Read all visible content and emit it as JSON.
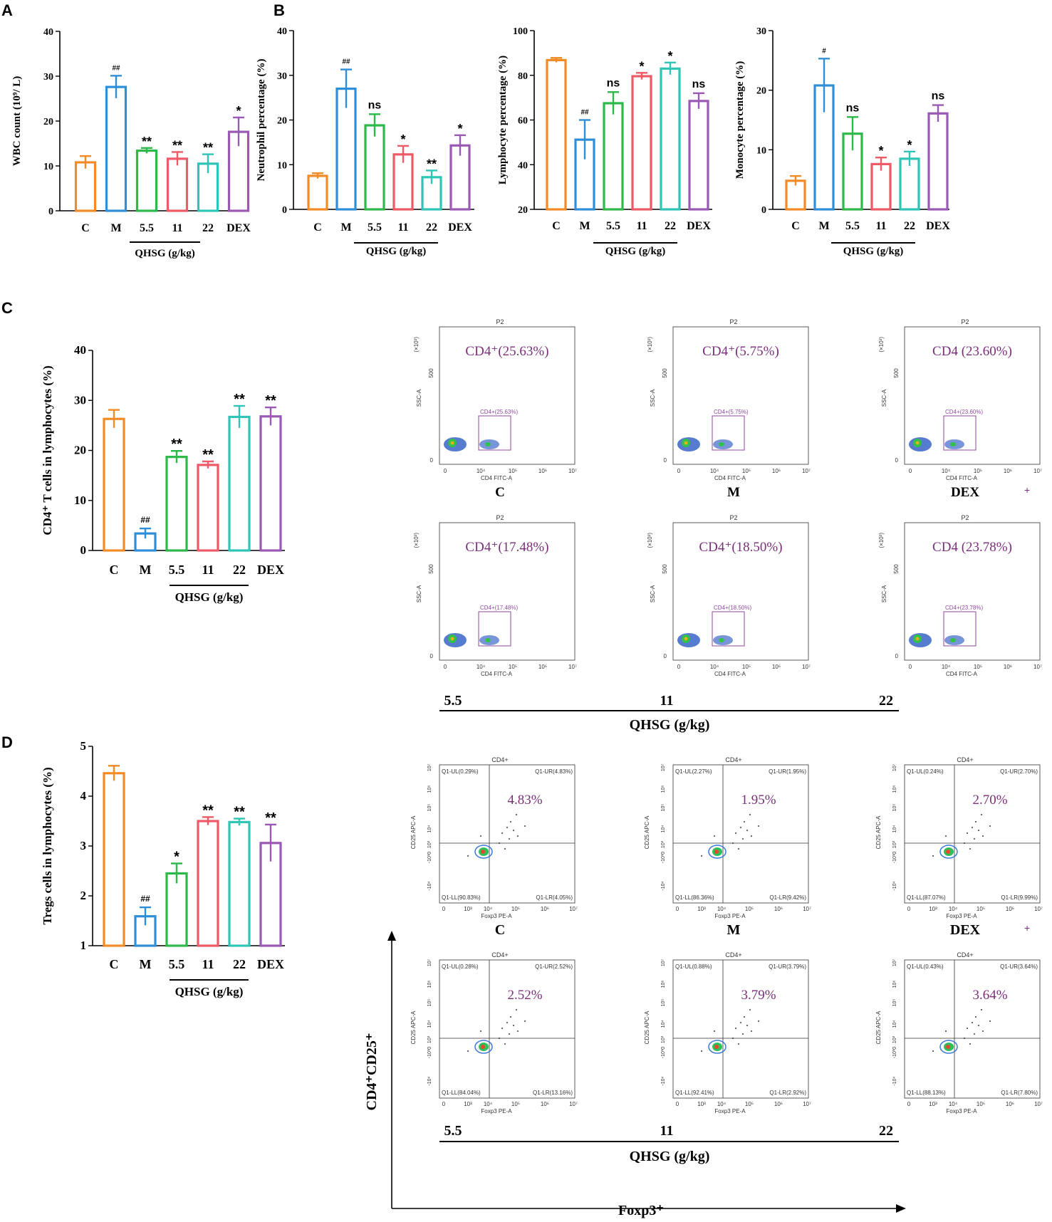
{
  "colors": {
    "C": "#F28A26",
    "M": "#2E8FD8",
    "5.5": "#2DB84A",
    "11": "#EE5A66",
    "22": "#2EC4B6",
    "DEX": "#9B59B6",
    "flow_text": "#7A2F7A",
    "gate": "#8E4A9E"
  },
  "panel_letters": [
    "A",
    "B",
    "C",
    "D"
  ],
  "categories": [
    "C",
    "M",
    "5.5",
    "11",
    "22",
    "DEX"
  ],
  "group_label": "QHSG (g/kg)",
  "chart_data": [
    {
      "id": "A",
      "type": "bar",
      "ylabel": "WBC count (10⁹/ L)",
      "ylim": [
        0,
        40
      ],
      "yticks": [
        0,
        10,
        20,
        30,
        40
      ],
      "categories": [
        "C",
        "M",
        "5.5",
        "11",
        "22",
        "DEX"
      ],
      "values": [
        10.8,
        27.6,
        13.4,
        11.6,
        10.5,
        17.6
      ],
      "errors": [
        1.4,
        2.5,
        0.6,
        1.5,
        2.1,
        3.2
      ],
      "annotations": [
        "",
        "##",
        "**",
        "**",
        "**",
        "*"
      ]
    },
    {
      "id": "B1",
      "type": "bar",
      "ylabel": "Neutrophil percentage (%)",
      "ylim": [
        0,
        40
      ],
      "yticks": [
        0,
        10,
        20,
        30,
        40
      ],
      "categories": [
        "C",
        "M",
        "5.5",
        "11",
        "22",
        "DEX"
      ],
      "values": [
        7.5,
        27.0,
        18.8,
        12.3,
        7.2,
        14.3
      ],
      "errors": [
        0.6,
        4.3,
        2.5,
        1.9,
        1.5,
        2.3
      ],
      "annotations": [
        "",
        "##",
        "ns",
        "*",
        "**",
        "*"
      ]
    },
    {
      "id": "B2",
      "type": "bar",
      "ylabel": "Lymphocyte percentage (%)",
      "ylim": [
        20,
        100
      ],
      "yticks": [
        20,
        40,
        60,
        80,
        100
      ],
      "categories": [
        "C",
        "M",
        "5.5",
        "11",
        "22",
        "DEX"
      ],
      "values": [
        86.8,
        51.2,
        67.5,
        79.6,
        83.0,
        68.5
      ],
      "errors": [
        1.0,
        8.8,
        5.0,
        1.5,
        2.7,
        3.5
      ],
      "annotations": [
        "",
        "##",
        "ns",
        "*",
        "*",
        "ns"
      ]
    },
    {
      "id": "B3",
      "type": "bar",
      "ylabel": "Monocyte percentage (%)",
      "ylim": [
        0,
        30
      ],
      "yticks": [
        0,
        10,
        20,
        30
      ],
      "categories": [
        "C",
        "M",
        "5.5",
        "11",
        "22",
        "DEX"
      ],
      "values": [
        4.8,
        20.8,
        12.7,
        7.6,
        8.5,
        16.1
      ],
      "errors": [
        0.8,
        4.5,
        2.8,
        1.1,
        1.2,
        1.4
      ],
      "annotations": [
        "#",
        "ns",
        "*",
        "*",
        "ns"
      ],
      "annotation_groups": [
        "M",
        "5.5",
        "11",
        "22",
        "DEX"
      ]
    },
    {
      "id": "C",
      "type": "bar",
      "ylabel": "CD4⁺ T cells in lymphocytes (%)",
      "ylim": [
        0,
        40
      ],
      "yticks": [
        0,
        10,
        20,
        30,
        40
      ],
      "categories": [
        "C",
        "M",
        "5.5",
        "11",
        "22",
        "DEX"
      ],
      "values": [
        26.3,
        3.4,
        18.7,
        17.1,
        26.7,
        26.8
      ],
      "errors": [
        1.8,
        1.0,
        1.2,
        0.7,
        2.2,
        1.8
      ],
      "annotations": [
        "",
        "##",
        "**",
        "**",
        "**",
        "**"
      ]
    },
    {
      "id": "D",
      "type": "bar",
      "ylabel": "Tregs cells in lymphocytes (%)",
      "ylim": [
        1,
        5
      ],
      "yticks": [
        1,
        2,
        3,
        4,
        5
      ],
      "categories": [
        "C",
        "M",
        "5.5",
        "11",
        "22",
        "DEX"
      ],
      "values": [
        4.46,
        1.59,
        2.45,
        3.5,
        3.48,
        3.06
      ],
      "errors": [
        0.15,
        0.18,
        0.2,
        0.08,
        0.07,
        0.37
      ],
      "annotations": [
        "",
        "##",
        "*",
        "**",
        "**",
        "**"
      ]
    }
  ],
  "flow_c": {
    "top_label": "P2",
    "x_axis_label": "CD4 FITC-A",
    "y_axis_label": "SSC-A",
    "y_multiplier": "(×10³)",
    "y_ticks": [
      "0",
      "500"
    ],
    "x_ticks": [
      "0",
      "10⁴",
      "10⁵",
      "10⁶",
      "10⁷"
    ],
    "panels": [
      {
        "group": "C",
        "big": "CD4⁺(25.63%)",
        "gate": "CD4+(25.63%)"
      },
      {
        "group": "M",
        "big": "CD4⁺(5.75%)",
        "gate": "CD4+(5.75%)"
      },
      {
        "group": "DEX",
        "big": "CD4 (23.60%)",
        "gate": "CD4+(23.60%)",
        "extra": "+"
      },
      {
        "group": "5.5",
        "big": "CD4⁺(17.48%)",
        "gate": "CD4+(17.48%)"
      },
      {
        "group": "11",
        "big": "CD4⁺(18.50%)",
        "gate": "CD4+(18.50%)"
      },
      {
        "group": "22",
        "big": "CD4 (23.78%)",
        "gate": "CD4+(23.78%)"
      }
    ],
    "bottom_labels": [
      "5.5",
      "11",
      "22"
    ],
    "group_label": "QHSG (g/kg)"
  },
  "flow_d": {
    "top_label": "CD4+",
    "x_axis_label": "Foxp3 PE-A",
    "y_axis_label": "CD25 APC-A",
    "x_ticks": [
      "0",
      "10³",
      "10⁴",
      "10⁵",
      "10⁶",
      "10⁷"
    ],
    "y_ticks": [
      "10⁷",
      "10⁶",
      "10⁵",
      "10⁴",
      "10³",
      "-10³0",
      "-10⁴"
    ],
    "panels": [
      {
        "group": "C",
        "big": "4.83%",
        "ul": "Q1-UL(0.29%)",
        "ur": "Q1-UR(4.83%)",
        "ll": "Q1-LL(90.83%)",
        "lr": "Q1-LR(4.05%)"
      },
      {
        "group": "M",
        "big": "1.95%",
        "ul": "Q1-UL(2.27%)",
        "ur": "Q1-UR(1.95%)",
        "ll": "Q1-LL(86.36%)",
        "lr": "Q1-LR(9.42%)"
      },
      {
        "group": "DEX",
        "big": "2.70%",
        "ul": "Q1-UL(0.24%)",
        "ur": "Q1-UR(2.70%)",
        "ll": "Q1-LL(87.07%)",
        "lr": "Q1-LR(9.99%)",
        "extra": "+"
      },
      {
        "group": "5.5",
        "big": "2.52%",
        "ul": "Q1-UL(0.28%)",
        "ur": "Q1-UR(2.52%)",
        "ll": "Q1-LL(84.04%)",
        "lr": "Q1-LR(13.16%)"
      },
      {
        "group": "11",
        "big": "3.79%",
        "ul": "Q1-UL(0.88%)",
        "ur": "Q1-UR(3.79%)",
        "ll": "Q1-LL(92.41%)",
        "lr": "Q1-LR(2.92%)"
      },
      {
        "group": "22",
        "big": "3.64%",
        "ul": "Q1-UL(0.43%)",
        "ur": "Q1-UR(3.64%)",
        "ll": "Q1-LL(88.13%)",
        "lr": "Q1-LR(7.80%)"
      }
    ],
    "bottom_labels": [
      "5.5",
      "11",
      "22"
    ],
    "group_label": "QHSG (g/kg)",
    "axis_y_label": "CD4⁺CD25⁺",
    "axis_x_label": "Foxp3⁺"
  }
}
